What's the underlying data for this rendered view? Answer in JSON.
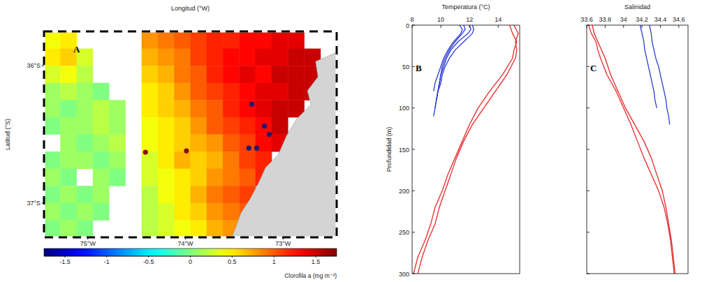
{
  "chart_data": [
    {
      "type": "heatmap",
      "panel": "A",
      "x_label": "Longitud (°W)",
      "y_label": "Latitud (°S)",
      "xlim": [
        -75.45,
        -72.45
      ],
      "ylim": [
        -37.25,
        -35.75
      ],
      "xticks": [
        {
          "value": -75,
          "label": "75°W"
        },
        {
          "value": -74,
          "label": "74°W"
        },
        {
          "value": -73,
          "label": "73°W"
        }
      ],
      "yticks": [
        {
          "value": -37,
          "label": "37°S"
        },
        {
          "value": -36,
          "label": "36°S"
        }
      ],
      "x": [
        -75.367,
        -75.2,
        -75.033,
        -74.867,
        -74.7,
        -74.533,
        -74.367,
        -74.2,
        -74.033,
        -73.867,
        -73.7,
        -73.533,
        -73.367,
        -73.2,
        -73.033,
        -72.867,
        -72.7,
        -72.533
      ],
      "y": [
        -35.8125,
        -35.9375,
        -36.0625,
        -36.1875,
        -36.3125,
        -36.4375,
        -36.5625,
        -36.6875,
        -36.8125,
        -36.9375,
        -37.0625,
        -37.1875
      ],
      "cells": [
        [
          0.4,
          0.5,
          null,
          null,
          null,
          null,
          0.8,
          0.9,
          1.0,
          1.1,
          1.2,
          1.2,
          1.3,
          1.3,
          1.4,
          1.4,
          null,
          null
        ],
        [
          0.5,
          0.6,
          0.3,
          null,
          null,
          null,
          0.7,
          0.8,
          0.9,
          1.1,
          1.2,
          1.3,
          1.3,
          1.4,
          1.4,
          1.5,
          1.5,
          null
        ],
        [
          0.3,
          0.4,
          0.2,
          null,
          null,
          null,
          0.6,
          0.7,
          0.9,
          1.0,
          1.2,
          1.3,
          1.4,
          1.3,
          1.5,
          1.5,
          1.5,
          null
        ],
        [
          0.1,
          0.2,
          0.1,
          0.0,
          null,
          null,
          0.5,
          0.6,
          0.8,
          1.0,
          1.1,
          1.2,
          1.3,
          1.4,
          1.4,
          1.5,
          1.5,
          null
        ],
        [
          0.1,
          0.0,
          0.1,
          0.2,
          0.1,
          null,
          0.5,
          0.6,
          0.7,
          0.9,
          1.0,
          1.2,
          1.3,
          1.4,
          1.5,
          1.5,
          null,
          null
        ],
        [
          0.0,
          0.1,
          0.1,
          0.2,
          0.1,
          null,
          0.4,
          0.5,
          0.6,
          0.8,
          1.0,
          1.1,
          1.2,
          1.3,
          1.5,
          null,
          null,
          null
        ],
        [
          null,
          0.1,
          0.0,
          0.1,
          0.2,
          null,
          0.4,
          0.5,
          0.6,
          0.7,
          0.8,
          1.0,
          1.1,
          1.3,
          1.4,
          null,
          null,
          null
        ],
        [
          0.0,
          0.1,
          0.1,
          0.0,
          0.1,
          null,
          0.3,
          0.5,
          0.7,
          0.6,
          0.7,
          0.9,
          1.1,
          1.2,
          null,
          null,
          null,
          null
        ],
        [
          0.1,
          0.0,
          null,
          0.1,
          0.0,
          null,
          0.3,
          0.4,
          0.5,
          0.6,
          0.8,
          0.9,
          1.0,
          1.2,
          null,
          null,
          null,
          null
        ],
        [
          0.0,
          0.1,
          0.0,
          0.1,
          null,
          null,
          0.2,
          0.4,
          0.5,
          0.7,
          0.9,
          1.0,
          1.1,
          null,
          null,
          null,
          null,
          null
        ],
        [
          0.1,
          0.0,
          0.1,
          0.0,
          null,
          null,
          0.2,
          0.3,
          0.5,
          0.6,
          0.8,
          0.9,
          1.0,
          null,
          null,
          null,
          null,
          null
        ],
        [
          0.0,
          0.1,
          0.0,
          null,
          null,
          null,
          0.2,
          0.3,
          0.4,
          0.5,
          0.7,
          0.8,
          0.9,
          null,
          null,
          null,
          null,
          null
        ]
      ],
      "color_range": [
        -1.75,
        1.75
      ],
      "color_ticks": [
        -1.5,
        -1,
        -0.5,
        0,
        0.5,
        1,
        1.5
      ],
      "colorbar_label": "Clorofila a (mg m⁻³)",
      "series": [
        {
          "type": "scatter",
          "marker": "circle",
          "color": "#1c1c6e",
          "x": [
            -73.32,
            -73.19,
            -73.14,
            -73.35,
            -73.27
          ],
          "values": [
            -36.28,
            -36.44,
            -36.5,
            -36.6,
            -36.6
          ]
        },
        {
          "type": "scatter",
          "marker": "circle",
          "color": "#8b0a1a",
          "x": [
            -74.41,
            -73.99
          ],
          "values": [
            -36.63,
            -36.62
          ]
        }
      ]
    },
    {
      "type": "line",
      "panel": "B",
      "x_label": "Temperatura (°C)",
      "y_label": "Profundidad (m)",
      "xlim": [
        8,
        15.5
      ],
      "xticks": [
        8,
        10,
        12,
        14
      ],
      "ylim": [
        0,
        300
      ],
      "yticks": [
        0,
        50,
        100,
        150,
        200,
        250,
        300
      ],
      "series": [
        {
          "color": "#2b3bd6",
          "x": [
            12.2,
            12.3,
            12.2,
            11.6,
            11.0,
            10.6,
            10.3,
            10.1,
            10.0,
            9.8,
            9.7,
            9.6,
            9.5
          ],
          "values": [
            0,
            5,
            10,
            20,
            30,
            40,
            50,
            60,
            70,
            80,
            90,
            100,
            110
          ]
        },
        {
          "color": "#2b3bd6",
          "x": [
            12.0,
            12.1,
            11.9,
            11.2,
            10.7,
            10.4,
            10.2,
            10.0,
            9.9,
            9.8,
            9.7,
            9.6
          ],
          "values": [
            0,
            5,
            10,
            20,
            30,
            40,
            50,
            60,
            70,
            80,
            90,
            100
          ]
        },
        {
          "color": "#2b3bd6",
          "x": [
            11.6,
            11.7,
            11.5,
            11.0,
            10.6,
            10.3,
            10.1,
            10.0,
            9.9,
            9.8,
            9.7
          ],
          "values": [
            0,
            5,
            10,
            20,
            30,
            40,
            50,
            60,
            70,
            80,
            90
          ]
        },
        {
          "color": "#2b3bd6",
          "x": [
            11.3,
            11.5,
            11.4,
            10.9,
            10.5,
            10.2,
            10.0,
            9.8,
            9.6,
            9.5
          ],
          "values": [
            0,
            5,
            10,
            20,
            30,
            40,
            50,
            60,
            70,
            80
          ]
        },
        {
          "color": "#e8282a",
          "x": [
            15.1,
            15.4,
            15.2,
            15.3,
            15.2,
            14.6,
            13.8,
            13.0,
            12.2,
            11.6,
            11.1,
            10.7,
            10.3,
            9.9,
            9.6,
            9.1,
            8.7,
            8.4
          ],
          "values": [
            0,
            10,
            20,
            30,
            40,
            60,
            80,
            100,
            120,
            140,
            160,
            180,
            200,
            220,
            240,
            260,
            280,
            300
          ]
        },
        {
          "color": "#e8282a",
          "x": [
            14.8,
            15.0,
            15.3,
            15.1,
            15.0,
            14.3,
            13.4,
            12.6,
            12.0,
            11.5,
            11.0,
            10.5,
            10.1,
            9.6,
            9.3,
            8.9,
            8.4,
            8.1
          ],
          "values": [
            0,
            10,
            20,
            30,
            40,
            60,
            80,
            100,
            120,
            140,
            160,
            180,
            200,
            220,
            240,
            260,
            280,
            300
          ]
        }
      ]
    },
    {
      "type": "line",
      "panel": "C",
      "x_label": "Salinidad",
      "tick_labels": "x",
      "xlim": [
        33.6,
        34.7
      ],
      "xticks": [
        33.6,
        33.8,
        34,
        34.2,
        34.4,
        34.6
      ],
      "ylim": [
        0,
        300
      ],
      "yticks": [
        0,
        50,
        100,
        150,
        200,
        250,
        300
      ],
      "series": [
        {
          "color": "#2b3bd6",
          "x": [
            34.18,
            34.2,
            34.22,
            34.23,
            34.25,
            34.27,
            34.29,
            34.31,
            34.33,
            34.34,
            34.36
          ],
          "values": [
            0,
            10,
            20,
            30,
            40,
            50,
            60,
            70,
            80,
            90,
            100
          ]
        },
        {
          "color": "#2b3bd6",
          "x": [
            34.28,
            34.3,
            34.31,
            34.33,
            34.35,
            34.38,
            34.4,
            34.42,
            34.44,
            34.46,
            34.47,
            34.49,
            34.5
          ],
          "values": [
            0,
            10,
            20,
            30,
            40,
            50,
            60,
            70,
            80,
            90,
            100,
            110,
            120
          ]
        },
        {
          "color": "#e8282a",
          "x": [
            33.62,
            33.65,
            33.7,
            33.72,
            33.75,
            33.82,
            33.92,
            34.0,
            34.08,
            34.15,
            34.22,
            34.3,
            34.38,
            34.44,
            34.48,
            34.51,
            34.53,
            34.55
          ],
          "values": [
            0,
            10,
            20,
            30,
            40,
            60,
            80,
            100,
            120,
            140,
            160,
            180,
            200,
            220,
            240,
            260,
            280,
            300
          ]
        },
        {
          "color": "#e8282a",
          "x": [
            33.66,
            33.68,
            33.72,
            33.76,
            33.8,
            33.86,
            33.94,
            34.02,
            34.12,
            34.22,
            34.3,
            34.36,
            34.42,
            34.46,
            34.49,
            34.52,
            34.54,
            34.56
          ],
          "values": [
            0,
            10,
            20,
            30,
            40,
            60,
            80,
            100,
            120,
            140,
            160,
            180,
            200,
            220,
            240,
            260,
            280,
            300
          ]
        }
      ]
    }
  ]
}
